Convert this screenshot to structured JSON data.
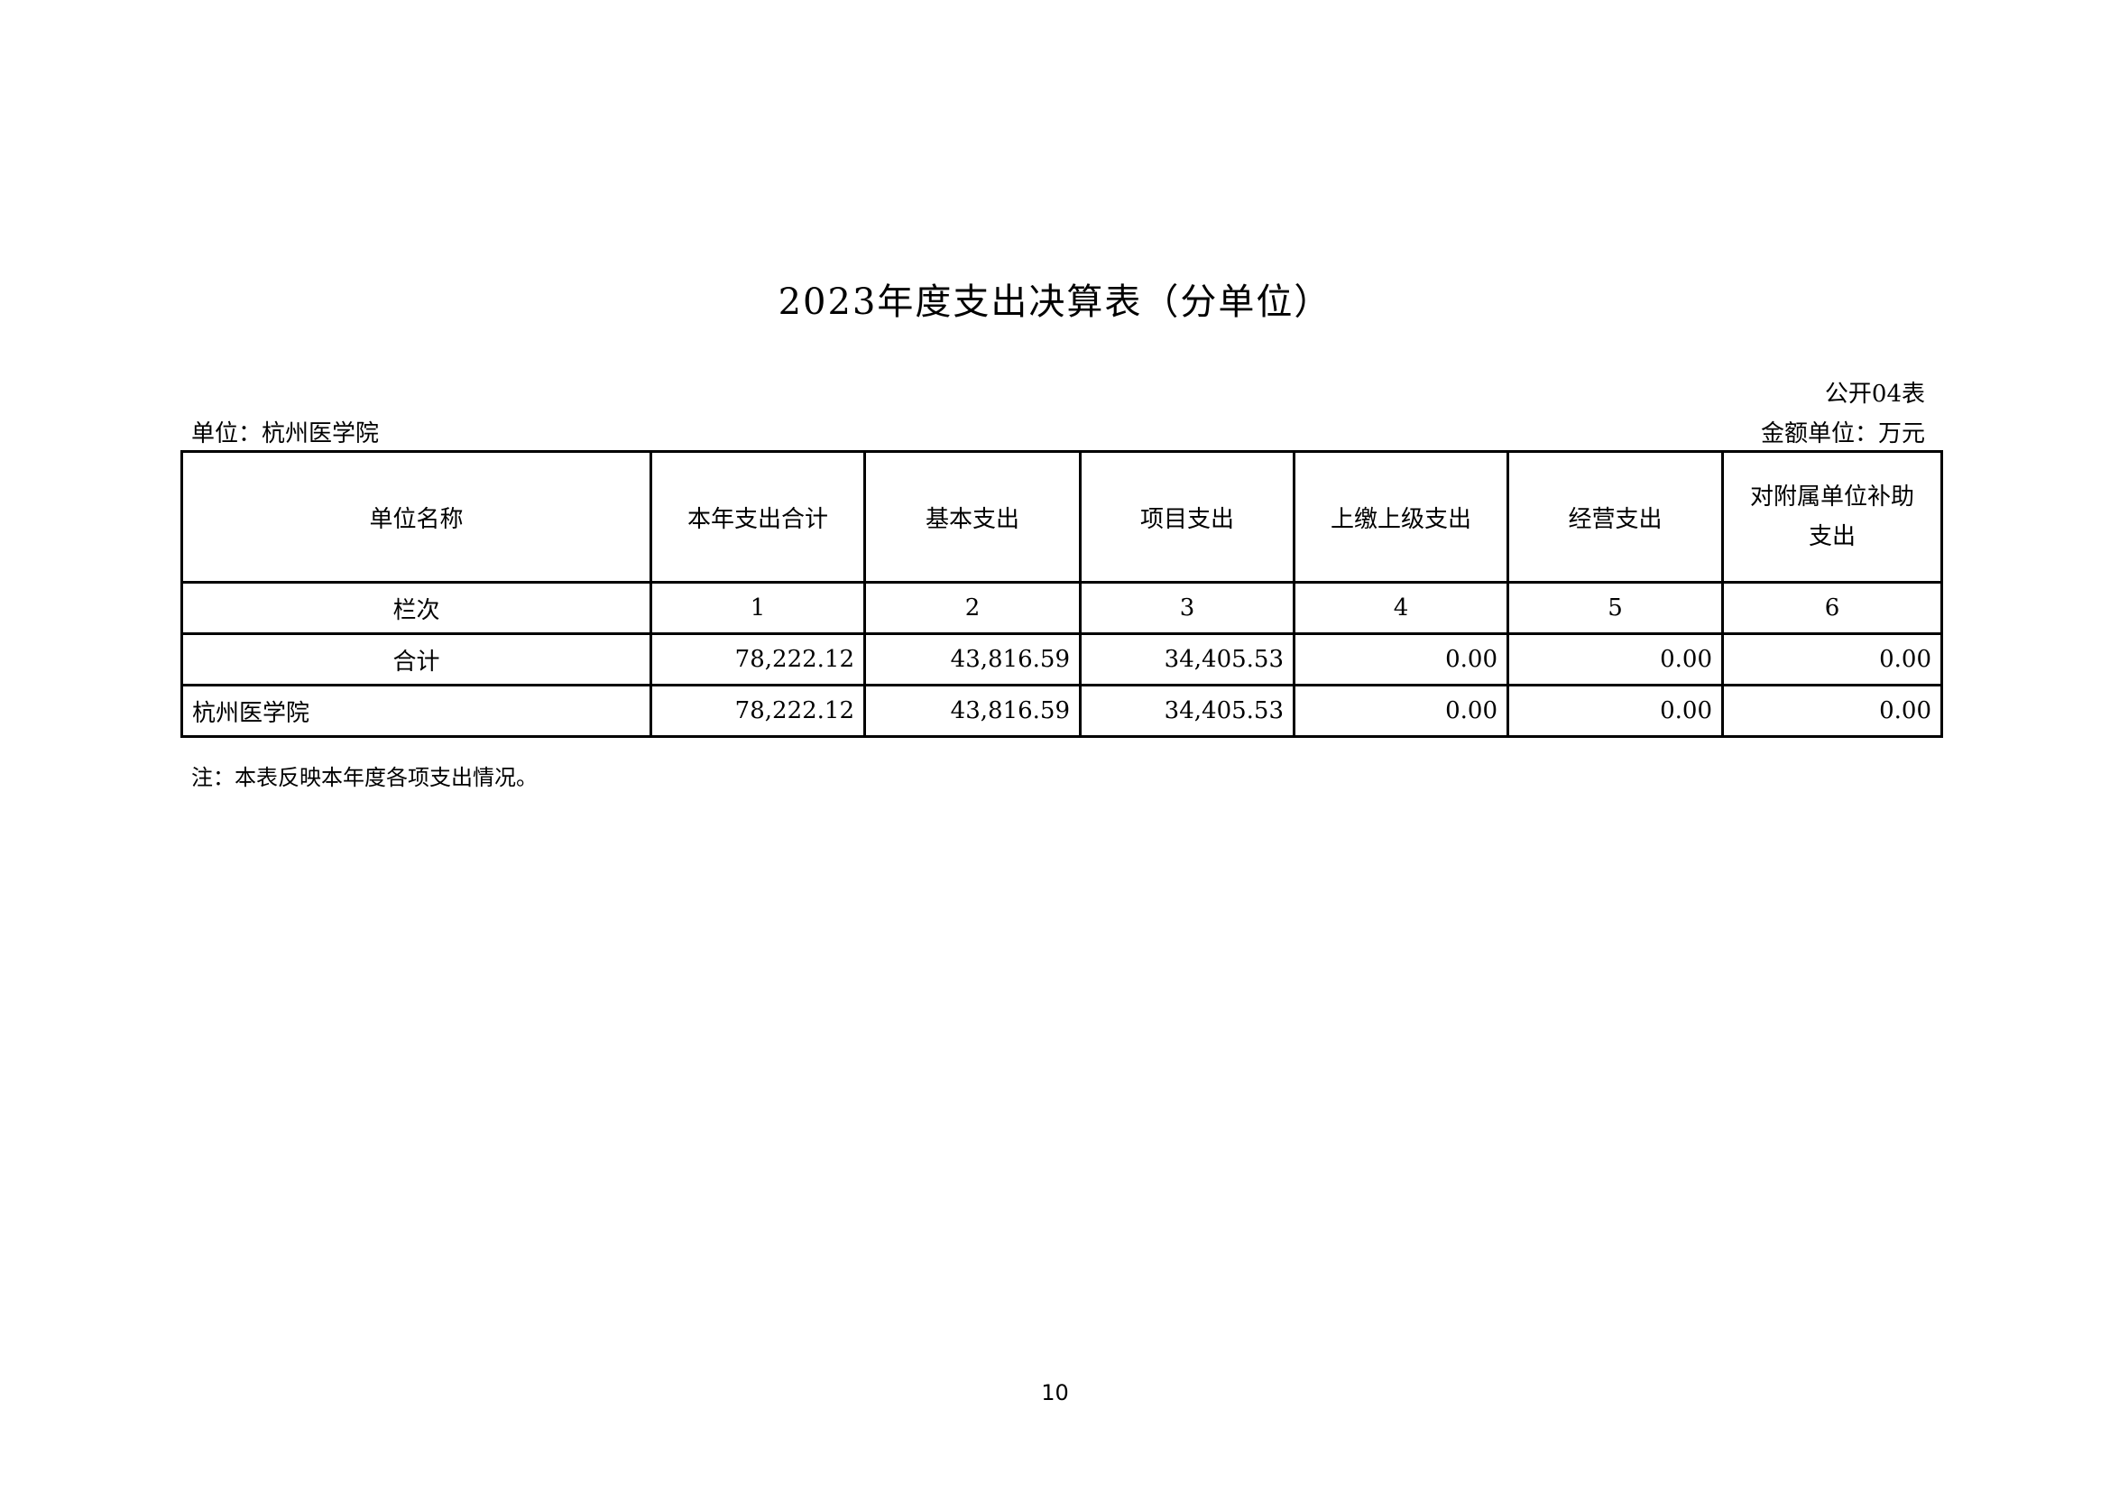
{
  "title": "2023年度支出决算表（分单位）",
  "table_code": "公开04表",
  "unit_label": "单位：杭州医学院",
  "money_unit": "金额单位：万元",
  "headers": [
    "单位名称",
    "本年支出合计",
    "基本支出",
    "项目支出",
    "上缴上级支出",
    "经营支出",
    "对附属单位补助支出"
  ],
  "column_index": [
    "栏次",
    "1",
    "2",
    "3",
    "4",
    "5",
    "6"
  ],
  "rows": [
    [
      "合计",
      "78,222.12",
      "43,816.59",
      "34,405.53",
      "0.00",
      "0.00",
      "0.00"
    ],
    [
      "杭州医学院",
      "78,222.12",
      "43,816.59",
      "34,405.53",
      "0.00",
      "0.00",
      "0.00"
    ]
  ],
  "note": "注：本表反映本年度各项支出情况。",
  "page_number": "10"
}
